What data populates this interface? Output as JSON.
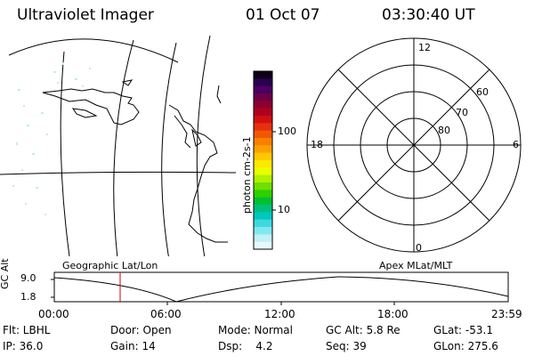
{
  "header": {
    "title": "Ultraviolet Imager",
    "date": "01 Oct 07",
    "time": "03:30:40 UT"
  },
  "colorbar": {
    "unit_label": "photon cm-2s-1",
    "ticks": [
      "100",
      "10"
    ],
    "colors": [
      "#0a0018",
      "#2a0050",
      "#4b0060",
      "#6a0048",
      "#8c0030",
      "#b00020",
      "#d01010",
      "#e83010",
      "#f05800",
      "#f88000",
      "#fca000",
      "#ffc800",
      "#ffe800",
      "#e8ff00",
      "#b0f000",
      "#70e000",
      "#30d000",
      "#00c030",
      "#00c080",
      "#00c8c0",
      "#40d8e0",
      "#80e8f0",
      "#c0f0f8",
      "#e8f8ff"
    ]
  },
  "polar": {
    "mlt_labels": {
      "top": "12",
      "left": "18",
      "right": "6",
      "bottom": "0"
    },
    "lat_labels": [
      "60",
      "70",
      "80"
    ]
  },
  "panels": {
    "left_label": "Geographic Lat/Lon",
    "right_label": "Apex MLat/MLT"
  },
  "altitude_plot": {
    "ylabel": "GC Alt",
    "yticks": [
      "9.0",
      "1.8"
    ],
    "xticks": [
      "00:00",
      "06:00",
      "12:00",
      "18:00",
      "23:59"
    ]
  },
  "info": {
    "flt": "Flt: LBHL",
    "door": "Door: Open",
    "mode": "Mode: Normal",
    "gc_alt": "GC Alt: 5.8 Re",
    "glat": "GLat: -53.1",
    "ip": "IP: 36.0",
    "gain": "Gain: 14",
    "dsp": "Dsp:    4.2",
    "seq": "Seq: 39",
    "glon": "GLon: 275.6"
  }
}
